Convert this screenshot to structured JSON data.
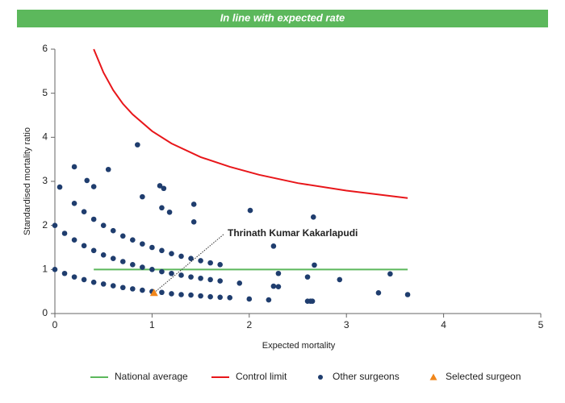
{
  "chart_data": {
    "type": "scatter",
    "title": "In line with expected rate",
    "x_label": "Expected mortality",
    "y_label": "Standardised mortality ratio",
    "xlim": [
      0,
      5
    ],
    "ylim": [
      0,
      6
    ],
    "xticks": [
      0,
      1,
      2,
      3,
      4,
      5
    ],
    "yticks": [
      0,
      1,
      2,
      3,
      4,
      5,
      6
    ],
    "grid": false,
    "legend": "bottom",
    "annotation": "Thrinath Kumar Kakarlapudi",
    "series": [
      {
        "name": "National average",
        "type": "line",
        "color": "#5cb85c",
        "x": [
          0.4,
          3.63
        ],
        "values": [
          1,
          1
        ]
      },
      {
        "name": "Control limit",
        "type": "line",
        "color": "#e8161a",
        "x": [
          0.4,
          0.5,
          0.6,
          0.7,
          0.8,
          1.0,
          1.2,
          1.5,
          1.8,
          2.1,
          2.5,
          3.0,
          3.63
        ],
        "values": [
          6.0,
          5.47,
          5.07,
          4.76,
          4.52,
          4.14,
          3.86,
          3.55,
          3.33,
          3.15,
          2.96,
          2.79,
          2.62
        ]
      },
      {
        "name": "Other surgeons",
        "type": "scatter",
        "marker": "circle",
        "color": "#1f3d6e",
        "x": [
          0,
          0.1,
          0.2,
          0.3,
          0.4,
          0.5,
          0.6,
          0.7,
          0.8,
          0.9,
          1.0,
          1.1,
          1.2,
          1.3,
          1.4,
          1.5,
          1.6,
          1.7,
          1.8,
          2.0,
          2.2,
          2.6,
          2.63,
          0,
          0.1,
          0.2,
          0.3,
          0.4,
          0.5,
          0.6,
          0.7,
          0.8,
          0.9,
          1.0,
          1.1,
          1.2,
          1.3,
          1.4,
          1.5,
          1.6,
          1.7,
          1.9,
          2.25,
          2.3,
          0.2,
          0.3,
          0.4,
          0.5,
          0.6,
          0.7,
          0.8,
          0.9,
          1.0,
          1.1,
          1.2,
          1.3,
          1.4,
          1.5,
          1.6,
          1.7,
          2.3,
          0.05,
          0.2,
          0.33,
          0.4,
          0.55,
          0.85,
          0.9,
          1.08,
          1.12,
          1.1,
          1.18,
          1.43,
          1.43,
          2.01,
          2.66,
          2.25,
          2.67,
          2.93,
          3.33,
          3.45,
          3.63,
          2.6,
          2.65
        ],
        "values": [
          1.0,
          0.91,
          0.83,
          0.77,
          0.71,
          0.67,
          0.63,
          0.59,
          0.56,
          0.53,
          0.5,
          0.48,
          0.45,
          0.43,
          0.42,
          0.4,
          0.38,
          0.37,
          0.36,
          0.33,
          0.31,
          0.28,
          0.28,
          2.0,
          1.82,
          1.67,
          1.54,
          1.43,
          1.33,
          1.25,
          1.18,
          1.11,
          1.05,
          1.0,
          0.95,
          0.91,
          0.87,
          0.83,
          0.8,
          0.77,
          0.74,
          0.69,
          0.62,
          0.61,
          2.5,
          2.31,
          2.14,
          2.0,
          1.88,
          1.76,
          1.67,
          1.58,
          1.5,
          1.43,
          1.36,
          1.3,
          1.25,
          1.2,
          1.15,
          1.11,
          0.91,
          2.87,
          3.33,
          3.02,
          2.88,
          3.27,
          3.83,
          2.65,
          2.9,
          2.84,
          2.4,
          2.3,
          2.48,
          2.08,
          2.34,
          2.19,
          1.53,
          1.1,
          0.77,
          0.47,
          0.9,
          0.43,
          0.83,
          0.28
        ]
      },
      {
        "name": "Selected surgeon",
        "type": "scatter",
        "marker": "triangle",
        "color": "#f0861b",
        "x": [
          1.02
        ],
        "values": [
          0.47
        ]
      }
    ]
  }
}
